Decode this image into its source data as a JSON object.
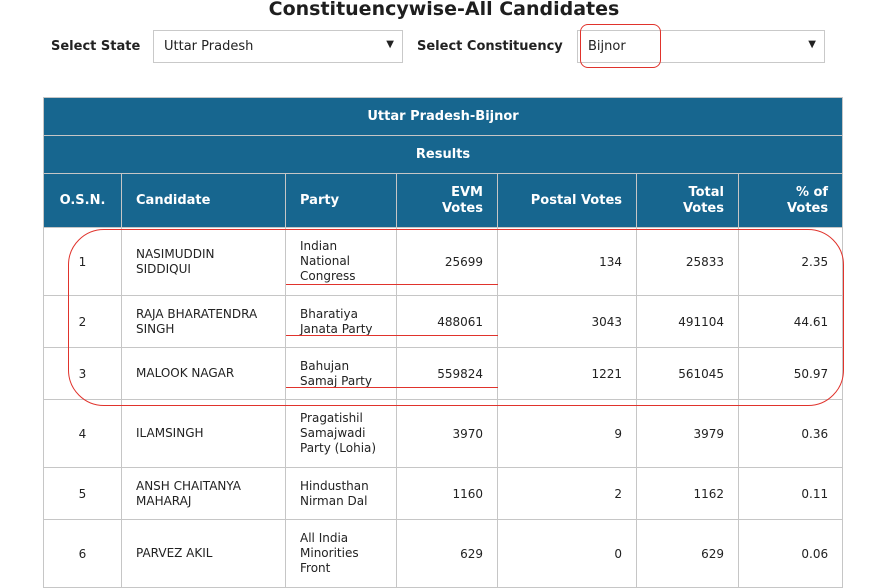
{
  "page": {
    "title": "Constituencywise-All Candidates"
  },
  "filters": {
    "state_label": "Select State",
    "state_value": "Uttar Pradesh",
    "constituency_label": "Select Constituency",
    "constituency_value": "Bijnor"
  },
  "table": {
    "title": "Uttar Pradesh-Bijnor",
    "subtitle": "Results",
    "columns": [
      "O.S.N.",
      "Candidate",
      "Party",
      "EVM Votes",
      "Postal Votes",
      "Total Votes",
      "% of Votes"
    ],
    "rows": [
      {
        "osn": "1",
        "candidate": "NASIMUDDIN SIDDIQUI",
        "party": "Indian National Congress",
        "evm": "25699",
        "postal": "134",
        "total": "25833",
        "pct": "2.35"
      },
      {
        "osn": "2",
        "candidate": "RAJA BHARATENDRA SINGH",
        "party": "Bharatiya Janata Party",
        "evm": "488061",
        "postal": "3043",
        "total": "491104",
        "pct": "44.61"
      },
      {
        "osn": "3",
        "candidate": "MALOOK NAGAR",
        "party": "Bahujan Samaj Party",
        "evm": "559824",
        "postal": "1221",
        "total": "561045",
        "pct": "50.97"
      },
      {
        "osn": "4",
        "candidate": "ILAMSINGH",
        "party": "Pragatishil Samajwadi Party (Lohia)",
        "evm": "3970",
        "postal": "9",
        "total": "3979",
        "pct": "0.36"
      },
      {
        "osn": "5",
        "candidate": "ANSH CHAITANYA MAHARAJ",
        "party": "Hindusthan Nirman Dal",
        "evm": "1160",
        "postal": "2",
        "total": "1162",
        "pct": "0.11"
      },
      {
        "osn": "6",
        "candidate": "PARVEZ AKIL",
        "party": "All India Minorities Front",
        "evm": "629",
        "postal": "0",
        "total": "629",
        "pct": "0.06"
      }
    ]
  },
  "annotations": {
    "color": "#e0332c"
  },
  "colors": {
    "header_bg": "#17668f"
  }
}
